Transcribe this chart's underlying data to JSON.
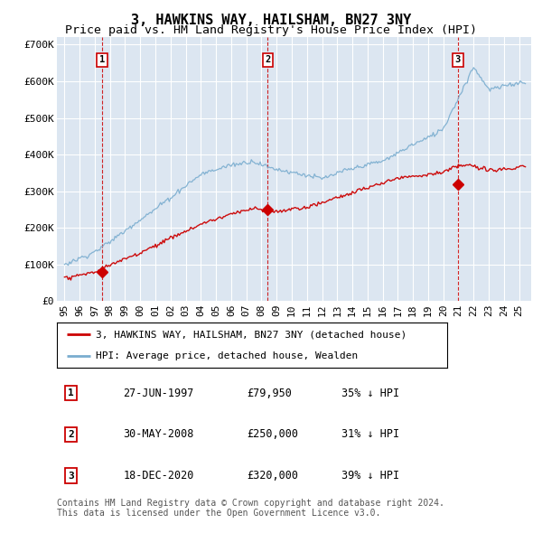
{
  "title": "3, HAWKINS WAY, HAILSHAM, BN27 3NY",
  "subtitle": "Price paid vs. HM Land Registry's House Price Index (HPI)",
  "ylim": [
    0,
    720000
  ],
  "yticks": [
    0,
    100000,
    200000,
    300000,
    400000,
    500000,
    600000,
    700000
  ],
  "ytick_labels": [
    "£0",
    "£100K",
    "£200K",
    "£300K",
    "£400K",
    "£500K",
    "£600K",
    "£700K"
  ],
  "background_color": "#dce6f1",
  "grid_color": "#ffffff",
  "red_color": "#cc0000",
  "blue_color": "#7aadcf",
  "sale_dates": [
    1997.49,
    2008.41,
    2020.96
  ],
  "sale_prices": [
    79950,
    250000,
    320000
  ],
  "sale_labels": [
    "1",
    "2",
    "3"
  ],
  "legend_red": "3, HAWKINS WAY, HAILSHAM, BN27 3NY (detached house)",
  "legend_blue": "HPI: Average price, detached house, Wealden",
  "table_rows": [
    [
      "1",
      "27-JUN-1997",
      "£79,950",
      "35% ↓ HPI"
    ],
    [
      "2",
      "30-MAY-2008",
      "£250,000",
      "31% ↓ HPI"
    ],
    [
      "3",
      "18-DEC-2020",
      "£320,000",
      "39% ↓ HPI"
    ]
  ],
  "footer": "Contains HM Land Registry data © Crown copyright and database right 2024.\nThis data is licensed under the Open Government Licence v3.0.",
  "title_fontsize": 11,
  "subtitle_fontsize": 9.5,
  "tick_fontsize": 8,
  "xstart": 1994.5,
  "xend": 2025.8,
  "xtick_years": [
    1995,
    1996,
    1997,
    1998,
    1999,
    2000,
    2001,
    2002,
    2003,
    2004,
    2005,
    2006,
    2007,
    2008,
    2009,
    2010,
    2011,
    2012,
    2013,
    2014,
    2015,
    2016,
    2017,
    2018,
    2019,
    2020,
    2021,
    2022,
    2023,
    2024,
    2025
  ]
}
